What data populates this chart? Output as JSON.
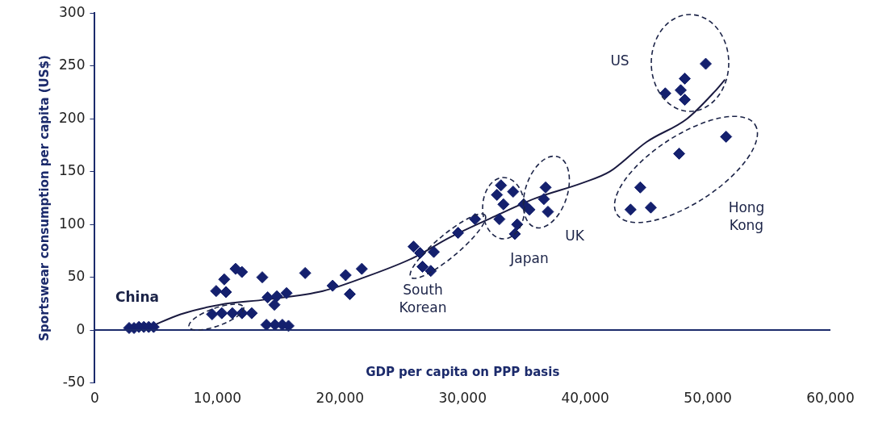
{
  "chart_data": {
    "type": "scatter",
    "xlabel": "GDP per capita on PPP basis",
    "ylabel": "Sportswear consumption per capita (US$)",
    "xlim": [
      0,
      60000
    ],
    "xticks": [
      {
        "value": 0,
        "label": "0"
      },
      {
        "value": 10000,
        "label": "10,000"
      },
      {
        "value": 20000,
        "label": "20,000"
      },
      {
        "value": 30000,
        "label": "30,000"
      },
      {
        "value": 40000,
        "label": "40,000"
      },
      {
        "value": 50000,
        "label": "50,000"
      },
      {
        "value": 60000,
        "label": "60,000"
      }
    ],
    "ylim": [
      -50,
      300
    ],
    "yticks": [
      -50,
      0,
      50,
      100,
      150,
      200,
      250,
      300
    ],
    "grid": false,
    "legend": false,
    "ref_lines": [
      {
        "axis": "y",
        "value": 0,
        "color": "#1b2a6b"
      }
    ],
    "series": [
      {
        "type": "scatter",
        "marker": "diamond",
        "color": "#14206e",
        "x": [
          2800,
          3200,
          3600,
          4000,
          4400,
          4800,
          9570,
          10360,
          11220,
          12010,
          12800,
          9900,
          10700,
          10560,
          11485,
          12000,
          13660,
          14100,
          14850,
          15640,
          14650,
          14000,
          14700,
          15300,
          15800,
          17160,
          19400,
          20460,
          21780,
          20800,
          26000,
          26530,
          27650,
          26730,
          27400,
          29630,
          31020,
          33130,
          32800,
          34120,
          33330,
          33000,
          34980,
          35450,
          34450,
          34260,
          36770,
          36630,
          36960,
          49830,
          48120,
          46530,
          47790,
          48120,
          51490,
          47660,
          44490,
          43700,
          45350
        ],
        "values": [
          2,
          2,
          3,
          3,
          3,
          3,
          15,
          16,
          16,
          16,
          16,
          37,
          36,
          48,
          58,
          55,
          50,
          31,
          32,
          35,
          24,
          5,
          5,
          5,
          4,
          54,
          42,
          52,
          58,
          34,
          79,
          73,
          74,
          60,
          56,
          92,
          105,
          137,
          128,
          131,
          119,
          105,
          119,
          114,
          100,
          91,
          135,
          124,
          112,
          252,
          238,
          224,
          227,
          218,
          183,
          167,
          135,
          114,
          116
        ]
      },
      {
        "type": "line",
        "marker": "none",
        "color": "#1a1a40",
        "x": [
          4500,
          7000,
          10200,
          14000,
          18600,
          22000,
          25900,
          29000,
          32300,
          36000,
          39700,
          42000,
          45000,
          48300,
          50500,
          51400
        ],
        "values": [
          3,
          15,
          24,
          29,
          37,
          50,
          68,
          88,
          106,
          125,
          139,
          150,
          178,
          200,
          225,
          237
        ]
      }
    ],
    "annotations": [
      "China",
      "South Korean",
      "Japan",
      "UK",
      "US",
      "Hong Kong"
    ]
  }
}
